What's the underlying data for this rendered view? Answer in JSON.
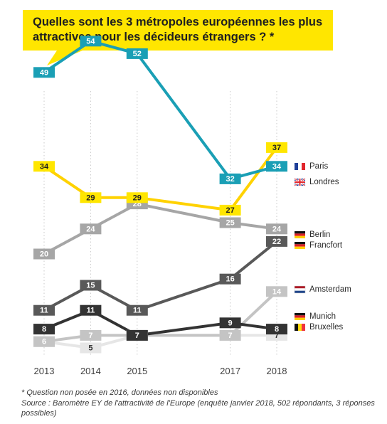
{
  "title_lines": [
    "Quelles sont les 3 métropoles européennes les plus",
    "attractives pour les décideurs étrangers ? *"
  ],
  "footnote": "* Question non posée en 2016, données non disponibles",
  "source": "Source : Baromètre EY de l'attractivité de l'Europe (enquête janvier 2018, 502 répondants, 3 réponses possibles)",
  "colors": {
    "title_box": "#FFE600",
    "grid": "#c8c8c8"
  },
  "chart_data": {
    "type": "line",
    "title": "Quelles sont les 3 métropoles européennes les plus attractives pour les décideurs étrangers ? *",
    "x": [
      2013,
      2014,
      2015,
      2017,
      2018
    ],
    "x_tick_labels": [
      "2013",
      "2014",
      "2015",
      "2017",
      "2018"
    ],
    "ylim": [
      0,
      60
    ],
    "grid": "vertical dotted lines",
    "legend_position": "right",
    "series": [
      {
        "name": "Paris",
        "values": [
          34,
          29,
          29,
          27,
          37
        ],
        "color": "#FFD200",
        "label_color": "#FFE600",
        "text_color": "#1f1f1f",
        "flag": "france"
      },
      {
        "name": "Londres",
        "values": [
          49,
          54,
          52,
          32,
          34
        ],
        "color": "#1A9FB5",
        "label_color": "#1A9FB5",
        "text_color": "#ffffff",
        "flag": "uk"
      },
      {
        "name": "Berlin",
        "values": [
          20,
          24,
          28,
          25,
          24
        ],
        "color": "#A6A6A6",
        "label_color": "#A6A6A6",
        "text_color": "#ffffff",
        "flag": "germany"
      },
      {
        "name": "Francfort",
        "values": [
          11,
          15,
          11,
          16,
          22
        ],
        "color": "#595959",
        "label_color": "#595959",
        "text_color": "#ffffff",
        "flag": "germany"
      },
      {
        "name": "Amsterdam",
        "values": [
          6,
          7,
          7,
          7,
          14
        ],
        "color": "#C4C4C4",
        "label_color": "#C4C4C4",
        "text_color": "#ffffff",
        "flag": "netherlands"
      },
      {
        "name": "Munich",
        "values": [
          8,
          11,
          7,
          9,
          8
        ],
        "color": "#333333",
        "label_color": "#333333",
        "text_color": "#ffffff",
        "flag": "germany"
      },
      {
        "name": "Bruxelles",
        "values": [
          6,
          5,
          7,
          7,
          7
        ],
        "color": "#E6E6E6",
        "label_color": "#E6E6E6",
        "text_color": "#333333",
        "flag": "belgium"
      }
    ]
  }
}
